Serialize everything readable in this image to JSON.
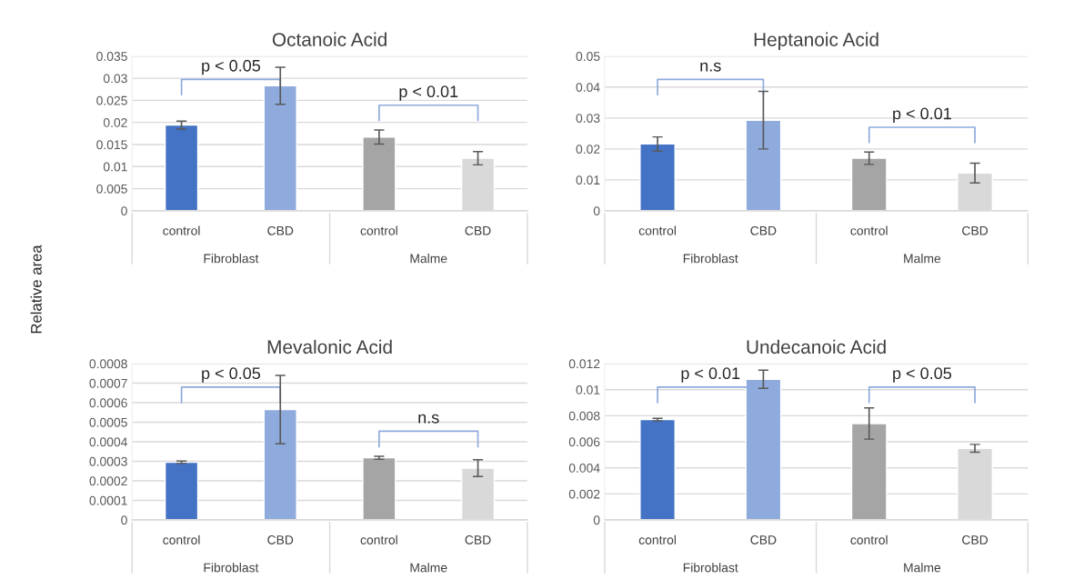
{
  "chart_data": [
    {
      "type": "bar",
      "title": "Octanoic Acid",
      "ylabel": "Relative area",
      "categories": [
        "control",
        "CBD",
        "control",
        "CBD"
      ],
      "values": [
        0.0194,
        0.0283,
        0.0167,
        0.0119
      ],
      "errors": [
        0.0009,
        0.0042,
        0.0016,
        0.0015
      ],
      "colors": [
        "#4472c4",
        "#8faadc",
        "#a5a5a5",
        "#d9d9d9"
      ],
      "ylim": [
        0,
        0.035
      ],
      "yticks": [
        0,
        0.005,
        0.01,
        0.015,
        0.02,
        0.025,
        0.03,
        0.035
      ],
      "grid": "y",
      "annotations": [
        "p < 0.05",
        "p < 0.01",
        "Fibroblast",
        "Malme"
      ]
    },
    {
      "type": "bar",
      "title": "Heptanoic Acid",
      "categories": [
        "control",
        "CBD",
        "control",
        "CBD"
      ],
      "values": [
        0.0216,
        0.0293,
        0.017,
        0.0122
      ],
      "errors": [
        0.0023,
        0.0093,
        0.002,
        0.0032
      ],
      "colors": [
        "#4472c4",
        "#8faadc",
        "#a5a5a5",
        "#d9d9d9"
      ],
      "ylim": [
        0,
        0.05
      ],
      "yticks": [
        0,
        0.01,
        0.02,
        0.03,
        0.04,
        0.05
      ],
      "grid": "y",
      "annotations": [
        "n.s",
        "p < 0.01",
        "Fibroblast",
        "Malme"
      ]
    },
    {
      "type": "bar",
      "title": "Mevalonic Acid",
      "categories": [
        "control",
        "CBD",
        "control",
        "CBD"
      ],
      "values": [
        0.000295,
        0.000565,
        0.000318,
        0.000265
      ],
      "errors": [
        6e-06,
        0.000175,
        8e-06,
        4.3e-05
      ],
      "colors": [
        "#4472c4",
        "#8faadc",
        "#a5a5a5",
        "#d9d9d9"
      ],
      "ylim": [
        0,
        0.0008
      ],
      "yticks": [
        0,
        0.0001,
        0.0002,
        0.0003,
        0.0004,
        0.0005,
        0.0006,
        0.0007,
        0.0008
      ],
      "grid": "y",
      "annotations": [
        "p < 0.05",
        "n.s",
        "Fibroblast",
        "Malme"
      ]
    },
    {
      "type": "bar",
      "title": "Undecanoic Acid",
      "categories": [
        "control",
        "CBD",
        "control",
        "CBD"
      ],
      "values": [
        0.0077,
        0.0108,
        0.0074,
        0.0055
      ],
      "errors": [
        0.0001,
        0.0007,
        0.0012,
        0.0003
      ],
      "colors": [
        "#4472c4",
        "#8faadc",
        "#a5a5a5",
        "#d9d9d9"
      ],
      "ylim": [
        0,
        0.012
      ],
      "yticks": [
        0,
        0.002,
        0.004,
        0.006,
        0.008,
        0.01,
        0.012
      ],
      "grid": "y",
      "annotations": [
        "p < 0.01",
        "p < 0.05",
        "Fibroblast",
        "Malme"
      ]
    }
  ]
}
